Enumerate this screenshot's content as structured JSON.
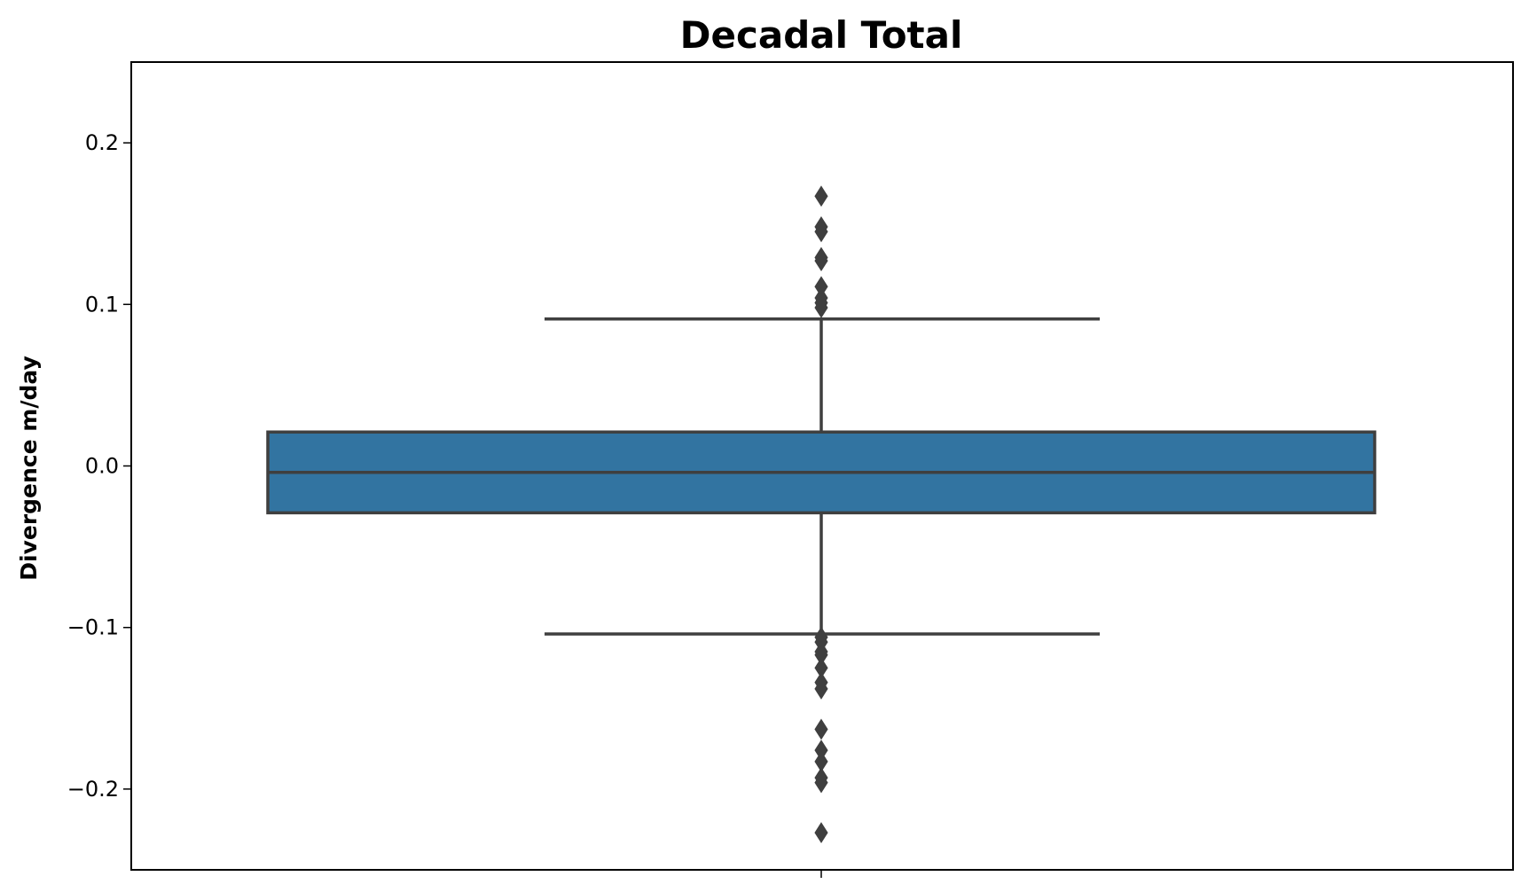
{
  "chart_data": {
    "type": "box",
    "title": "Decadal Total",
    "xlabel": "",
    "ylabel": "Divergence m/day",
    "ylim": [
      -0.25,
      0.25
    ],
    "yticks": [
      0.2,
      0.1,
      0.0,
      -0.1,
      -0.2
    ],
    "ytick_labels": [
      "0.2",
      "0.1",
      "0.0",
      "−0.1",
      "−0.2"
    ],
    "grid": false,
    "legend": "none",
    "box": {
      "q1": -0.029,
      "median": -0.004,
      "q3": 0.021,
      "whisker_low": -0.104,
      "whisker_high": 0.091,
      "color": "#3274a1",
      "edge_color": "#3f3f3f"
    },
    "outliers": [
      0.167,
      0.148,
      0.145,
      0.129,
      0.127,
      0.111,
      0.104,
      0.101,
      0.098,
      -0.106,
      -0.109,
      -0.115,
      -0.117,
      -0.125,
      -0.134,
      -0.138,
      -0.163,
      -0.176,
      -0.183,
      -0.193,
      -0.196,
      -0.227
    ]
  }
}
